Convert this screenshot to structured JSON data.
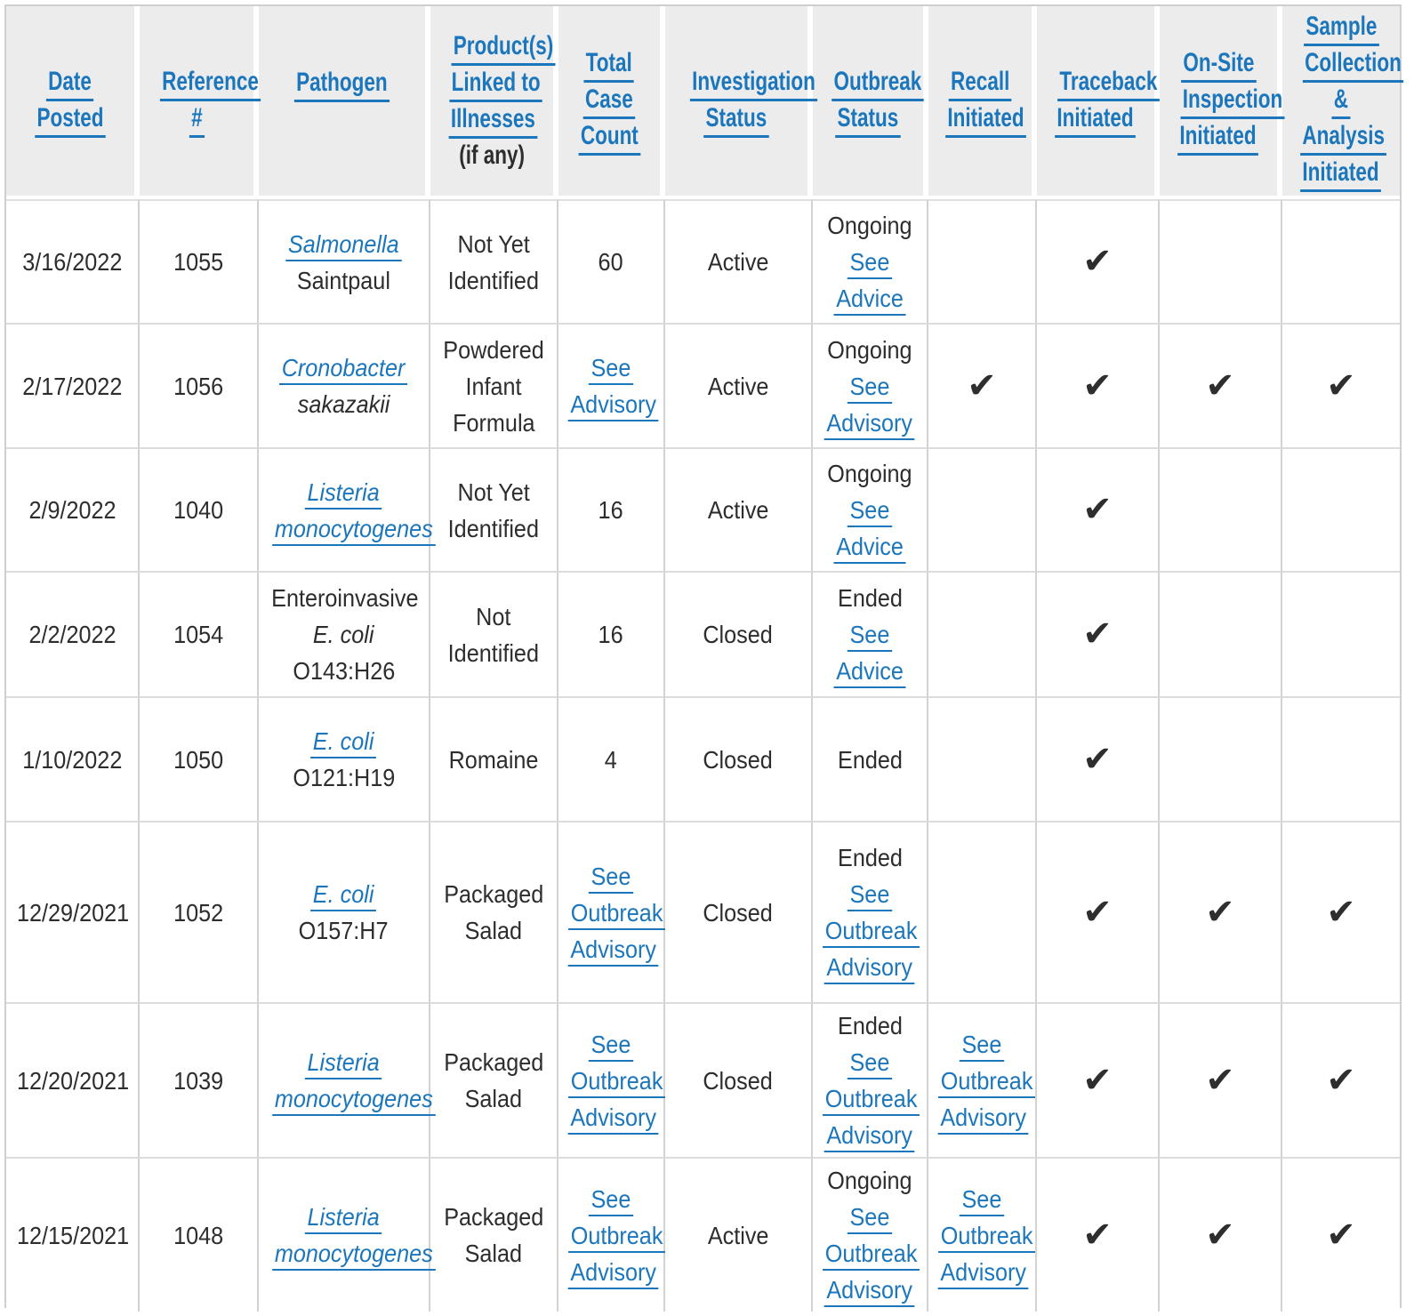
{
  "colors": {
    "header_bg": "#ececec",
    "link_blue": "#1b76bc",
    "body_text": "#2d2d2d",
    "grid_border": "#d2d2d2",
    "check_mark": "#2e2e2e"
  },
  "icons": {
    "check": "✔"
  },
  "table": {
    "columns": [
      {
        "key": "date-posted",
        "label": "Date\nPosted"
      },
      {
        "key": "reference-number",
        "label": "Reference\n#"
      },
      {
        "key": "pathogen",
        "label": "Pathogen",
        "blank_line_after": true
      },
      {
        "key": "products-linked",
        "label": "Product(s)\nLinked to\nIllnesses",
        "suffix": "(if any)"
      },
      {
        "key": "total-case-count",
        "label": "Total\nCase\nCount"
      },
      {
        "key": "investigation-status",
        "label": "Investigation\nStatus"
      },
      {
        "key": "outbreak-status",
        "label": "Outbreak\nStatus"
      },
      {
        "key": "recall-initiated",
        "label": "Recall\nInitiated"
      },
      {
        "key": "traceback-initiated",
        "label": "Traceback\nInitiated"
      },
      {
        "key": "onsite-inspection-initiated",
        "label": "On-Site\nInspection\nInitiated"
      },
      {
        "key": "sample-collection-analysis-initiated",
        "label": "Sample\nCollection\n&\nAnalysis\nInitiated"
      }
    ],
    "rows": [
      {
        "cells": [
          {
            "lines": [
              {
                "t": "3/16/2022"
              }
            ]
          },
          {
            "lines": [
              {
                "t": "1055"
              }
            ]
          },
          {
            "lines": [
              {
                "t": "Salmonella",
                "link": true,
                "italic": true
              },
              {
                "t": "Saintpaul"
              }
            ]
          },
          {
            "lines": [
              {
                "t": "Not Yet"
              },
              {
                "t": "Identified"
              }
            ]
          },
          {
            "lines": [
              {
                "t": "60"
              }
            ]
          },
          {
            "lines": [
              {
                "t": "Active"
              }
            ]
          },
          {
            "lines": [
              {
                "t": "Ongoing"
              },
              {
                "t": "See",
                "link": true
              },
              {
                "t": "Advice",
                "link": true
              }
            ]
          },
          {},
          {
            "check": true
          },
          {},
          {}
        ]
      },
      {
        "cells": [
          {
            "lines": [
              {
                "t": "2/17/2022"
              }
            ]
          },
          {
            "lines": [
              {
                "t": "1056"
              }
            ]
          },
          {
            "lines": [
              {
                "t": "Cronobacter",
                "link": true,
                "italic": true
              },
              {
                "t": "sakazakii",
                "italic": true
              }
            ]
          },
          {
            "lines": [
              {
                "t": "Powdered"
              },
              {
                "t": "Infant"
              },
              {
                "t": "Formula"
              }
            ]
          },
          {
            "lines": [
              {
                "t": "See",
                "link": true
              },
              {
                "t": "Advisory",
                "link": true
              }
            ]
          },
          {
            "lines": [
              {
                "t": "Active"
              }
            ]
          },
          {
            "lines": [
              {
                "t": "Ongoing"
              },
              {
                "t": "See",
                "link": true
              },
              {
                "t": "Advisory",
                "link": true
              }
            ]
          },
          {
            "check": true
          },
          {
            "check": true
          },
          {
            "check": true
          },
          {
            "check": true
          }
        ]
      },
      {
        "cells": [
          {
            "lines": [
              {
                "t": "2/9/2022"
              }
            ]
          },
          {
            "lines": [
              {
                "t": "1040"
              }
            ]
          },
          {
            "lines": [
              {
                "t": "Listeria",
                "link": true,
                "italic": true
              },
              {
                "t": "monocytogenes",
                "link": true,
                "italic": true
              }
            ]
          },
          {
            "lines": [
              {
                "t": "Not Yet"
              },
              {
                "t": "Identified"
              }
            ]
          },
          {
            "lines": [
              {
                "t": "16"
              }
            ]
          },
          {
            "lines": [
              {
                "t": "Active"
              }
            ]
          },
          {
            "lines": [
              {
                "t": "Ongoing"
              },
              {
                "t": "See",
                "link": true
              },
              {
                "t": "Advice",
                "link": true
              }
            ]
          },
          {},
          {
            "check": true
          },
          {},
          {}
        ]
      },
      {
        "cells": [
          {
            "lines": [
              {
                "t": "2/2/2022"
              }
            ]
          },
          {
            "lines": [
              {
                "t": "1054"
              }
            ]
          },
          {
            "lines": [
              {
                "t": "Enteroinvasive"
              },
              {
                "t": "E. coli",
                "italic": true
              },
              {
                "t": "O143:H26"
              }
            ]
          },
          {
            "lines": [
              {
                "t": "Not"
              },
              {
                "t": "Identified"
              }
            ]
          },
          {
            "lines": [
              {
                "t": "16"
              }
            ]
          },
          {
            "lines": [
              {
                "t": "Closed"
              }
            ]
          },
          {
            "lines": [
              {
                "t": "Ended"
              },
              {
                "t": "See",
                "link": true
              },
              {
                "t": "Advice",
                "link": true
              }
            ]
          },
          {},
          {
            "check": true
          },
          {},
          {}
        ]
      },
      {
        "cells": [
          {
            "lines": [
              {
                "t": "1/10/2022"
              }
            ]
          },
          {
            "lines": [
              {
                "t": "1050"
              }
            ]
          },
          {
            "lines": [
              {
                "t": "E. coli",
                "link": true,
                "italic": true
              },
              {
                "t": "O121:H19"
              }
            ]
          },
          {
            "lines": [
              {
                "t": "Romaine"
              }
            ]
          },
          {
            "lines": [
              {
                "t": "4"
              }
            ]
          },
          {
            "lines": [
              {
                "t": "Closed"
              }
            ]
          },
          {
            "lines": [
              {
                "t": "Ended"
              }
            ]
          },
          {},
          {
            "check": true
          },
          {},
          {}
        ]
      },
      {
        "cells": [
          {
            "lines": [
              {
                "t": "12/29/2021"
              }
            ]
          },
          {
            "lines": [
              {
                "t": "1052"
              }
            ]
          },
          {
            "lines": [
              {
                "t": "E. coli",
                "link": true,
                "italic": true
              },
              {
                "t": "O157:H7"
              }
            ]
          },
          {
            "lines": [
              {
                "t": "Packaged"
              },
              {
                "t": "Salad"
              }
            ]
          },
          {
            "lines": [
              {
                "t": "See",
                "link": true
              },
              {
                "t": "Outbreak",
                "link": true
              },
              {
                "t": "Advisory",
                "link": true
              }
            ]
          },
          {
            "lines": [
              {
                "t": "Closed"
              }
            ]
          },
          {
            "lines": [
              {
                "t": "Ended"
              },
              {
                "t": "See",
                "link": true
              },
              {
                "t": "Outbreak",
                "link": true
              },
              {
                "t": "Advisory",
                "link": true
              }
            ]
          },
          {},
          {
            "check": true
          },
          {
            "check": true
          },
          {
            "check": true
          }
        ]
      },
      {
        "cells": [
          {
            "lines": [
              {
                "t": "12/20/2021"
              }
            ]
          },
          {
            "lines": [
              {
                "t": "1039"
              }
            ]
          },
          {
            "lines": [
              {
                "t": "Listeria",
                "link": true,
                "italic": true
              },
              {
                "t": "monocytogenes",
                "link": true,
                "italic": true
              }
            ]
          },
          {
            "lines": [
              {
                "t": "Packaged"
              },
              {
                "t": "Salad"
              }
            ]
          },
          {
            "lines": [
              {
                "t": "See",
                "link": true
              },
              {
                "t": "Outbreak",
                "link": true
              },
              {
                "t": "Advisory",
                "link": true
              }
            ]
          },
          {
            "lines": [
              {
                "t": "Closed"
              }
            ]
          },
          {
            "lines": [
              {
                "t": "Ended"
              },
              {
                "t": "See",
                "link": true
              },
              {
                "t": "Outbreak",
                "link": true
              },
              {
                "t": "Advisory",
                "link": true
              }
            ]
          },
          {
            "lines": [
              {
                "t": "See",
                "link": true
              },
              {
                "t": "Outbreak",
                "link": true
              },
              {
                "t": "Advisory",
                "link": true
              }
            ]
          },
          {
            "check": true
          },
          {
            "check": true
          },
          {
            "check": true
          }
        ]
      },
      {
        "cells": [
          {
            "lines": [
              {
                "t": "12/15/2021"
              }
            ]
          },
          {
            "lines": [
              {
                "t": "1048"
              }
            ]
          },
          {
            "lines": [
              {
                "t": "Listeria",
                "link": true,
                "italic": true
              },
              {
                "t": "monocytogenes",
                "link": true,
                "italic": true
              }
            ]
          },
          {
            "lines": [
              {
                "t": "Packaged"
              },
              {
                "t": "Salad"
              }
            ]
          },
          {
            "lines": [
              {
                "t": "See",
                "link": true
              },
              {
                "t": "Outbreak",
                "link": true
              },
              {
                "t": "Advisory",
                "link": true
              }
            ]
          },
          {
            "lines": [
              {
                "t": "Active"
              }
            ]
          },
          {
            "lines": [
              {
                "t": "Ongoing"
              },
              {
                "t": "See",
                "link": true
              },
              {
                "t": "Outbreak",
                "link": true
              },
              {
                "t": "Advisory",
                "link": true
              }
            ]
          },
          {
            "lines": [
              {
                "t": "See",
                "link": true
              },
              {
                "t": "Outbreak",
                "link": true
              },
              {
                "t": "Advisory",
                "link": true
              }
            ]
          },
          {
            "check": true
          },
          {
            "check": true
          },
          {
            "check": true
          }
        ]
      }
    ]
  }
}
